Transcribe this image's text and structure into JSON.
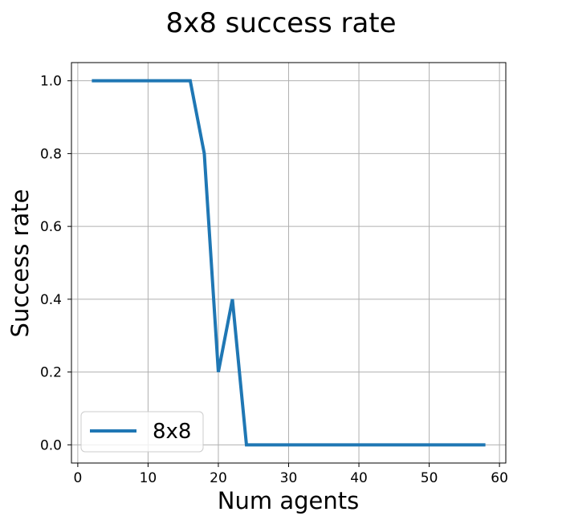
{
  "chart_data": {
    "type": "line",
    "title": "8x8 success rate",
    "xlabel": "Num agents",
    "ylabel": "Success rate",
    "xlim": [
      -0.9,
      60.9
    ],
    "ylim": [
      -0.05,
      1.05
    ],
    "xticks": [
      0,
      10,
      20,
      30,
      40,
      50,
      60
    ],
    "xtick_labels": [
      "0",
      "10",
      "20",
      "30",
      "40",
      "50",
      "60"
    ],
    "yticks": [
      0.0,
      0.2,
      0.4,
      0.6,
      0.8,
      1.0
    ],
    "ytick_labels": [
      "0.0",
      "0.2",
      "0.4",
      "0.6",
      "0.8",
      "1.0"
    ],
    "grid": true,
    "legend_position": "lower-left",
    "series": [
      {
        "name": "8x8",
        "color": "#1f77b4",
        "x": [
          2,
          4,
          6,
          8,
          10,
          12,
          14,
          16,
          18,
          20,
          22,
          24,
          26,
          28,
          30,
          32,
          34,
          36,
          38,
          40,
          42,
          44,
          46,
          48,
          50,
          52,
          54,
          56,
          58
        ],
        "y": [
          1.0,
          1.0,
          1.0,
          1.0,
          1.0,
          1.0,
          1.0,
          1.0,
          0.8,
          0.2,
          0.4,
          0.0,
          0.0,
          0.0,
          0.0,
          0.0,
          0.0,
          0.0,
          0.0,
          0.0,
          0.0,
          0.0,
          0.0,
          0.0,
          0.0,
          0.0,
          0.0,
          0.0,
          0.0
        ]
      }
    ]
  }
}
